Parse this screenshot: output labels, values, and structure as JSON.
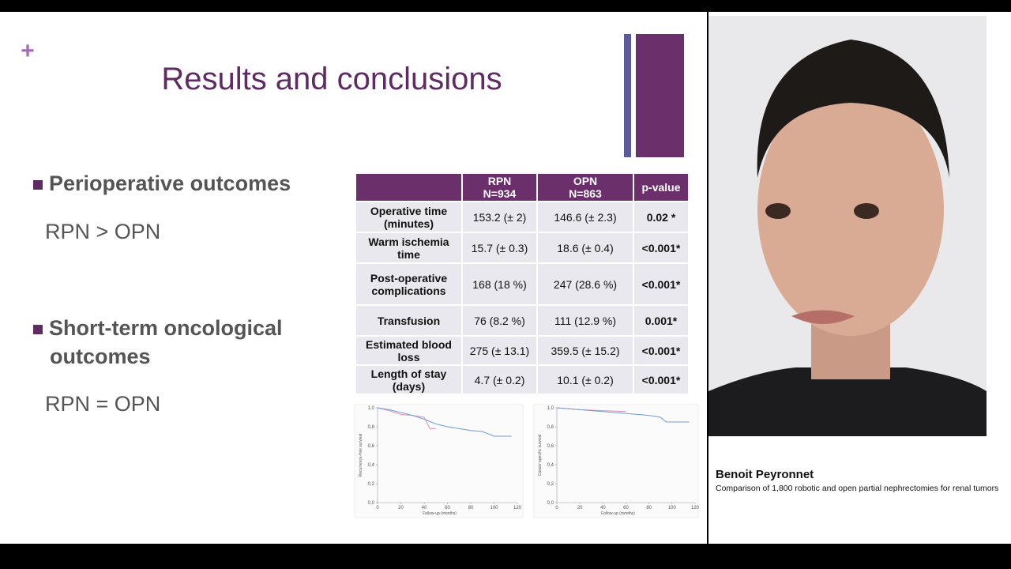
{
  "slide": {
    "title": "Results and conclusions",
    "bullets": [
      {
        "heading": "Perioperative outcomes",
        "text": "RPN > OPN"
      },
      {
        "heading": "Short-term oncological outcomes",
        "text": "RPN = OPN"
      }
    ]
  },
  "table": {
    "header": [
      "RPN",
      "OPN",
      "p-value"
    ],
    "header_n": [
      "N=934",
      "N=863"
    ],
    "rows": [
      [
        "Operative time (minutes)",
        "153.2 (± 2)",
        "146.6 (± 2.3)",
        "0.02 *"
      ],
      [
        "Warm ischemia time",
        "15.7 (± 0.3)",
        "18.6 (± 0.4)",
        "<0.001*"
      ],
      [
        "Post-operative complications",
        "168 (18 %)",
        "247 (28.6 %)",
        "<0.001*"
      ],
      [
        "Transfusion",
        "76 (8.2 %)",
        "111 (12.9 %)",
        "0.001*"
      ],
      [
        "Estimated blood loss",
        "275 (± 13.1)",
        "359.5 (± 15.2)",
        "<0.001*"
      ],
      [
        "Length of stay (days)",
        "4.7 (± 0.2)",
        "10.1 (± 0.2)",
        "<0.001*"
      ]
    ]
  },
  "charts": [
    {
      "type": "line",
      "ylabel": "Recurrence-free survival",
      "xlabel": "Follow-up (months)",
      "xlim": [
        0,
        120
      ],
      "ylim": [
        0,
        1
      ],
      "xticks": [
        0,
        20,
        40,
        60,
        80,
        100,
        120
      ],
      "yticks": [
        {
          "value": 0,
          "label": "0,0"
        },
        {
          "value": 0.2,
          "label": "0,2"
        },
        {
          "value": 0.4,
          "label": "0,4"
        },
        {
          "value": 0.6,
          "label": "0,6"
        },
        {
          "value": 0.8,
          "label": "0,8"
        },
        {
          "value": 1,
          "label": "1,0"
        }
      ],
      "series": [
        {
          "color": "#e58fb0",
          "x": [
            0,
            10,
            20,
            30,
            40,
            45,
            50
          ],
          "values": [
            1,
            0.97,
            0.93,
            0.92,
            0.9,
            0.78,
            0.78
          ]
        },
        {
          "color": "#6d9ed6",
          "x": [
            0,
            10,
            20,
            30,
            40,
            50,
            60,
            70,
            80,
            90,
            100,
            110,
            115
          ],
          "values": [
            1,
            0.98,
            0.95,
            0.92,
            0.88,
            0.83,
            0.8,
            0.78,
            0.76,
            0.75,
            0.7,
            0.7,
            0.7
          ]
        }
      ]
    },
    {
      "type": "line",
      "ylabel": "Cancer-specific survival",
      "xlabel": "Follow-up (months)",
      "xlim": [
        0,
        120
      ],
      "ylim": [
        0,
        1
      ],
      "xticks": [
        0,
        20,
        40,
        60,
        80,
        100,
        120
      ],
      "yticks": [
        {
          "value": 0,
          "label": "0,0"
        },
        {
          "value": 0.2,
          "label": "0,2"
        },
        {
          "value": 0.4,
          "label": "0,4"
        },
        {
          "value": 0.6,
          "label": "0,6"
        },
        {
          "value": 0.8,
          "label": "0,8"
        },
        {
          "value": 1,
          "label": "1,0"
        }
      ],
      "series": [
        {
          "color": "#e58fb0",
          "x": [
            0,
            20,
            40,
            60
          ],
          "values": [
            1,
            0.98,
            0.97,
            0.96
          ]
        },
        {
          "color": "#6d9ed6",
          "x": [
            0,
            10,
            20,
            30,
            40,
            50,
            60,
            70,
            80,
            90,
            95,
            115
          ],
          "values": [
            1,
            0.99,
            0.98,
            0.97,
            0.96,
            0.95,
            0.94,
            0.93,
            0.92,
            0.9,
            0.85,
            0.85
          ]
        }
      ]
    }
  ],
  "speaker": {
    "name": "Benoit Peyronnet",
    "caption": "Comparison of 1,800 robotic and open partial nephrectomies for renal tumors"
  }
}
